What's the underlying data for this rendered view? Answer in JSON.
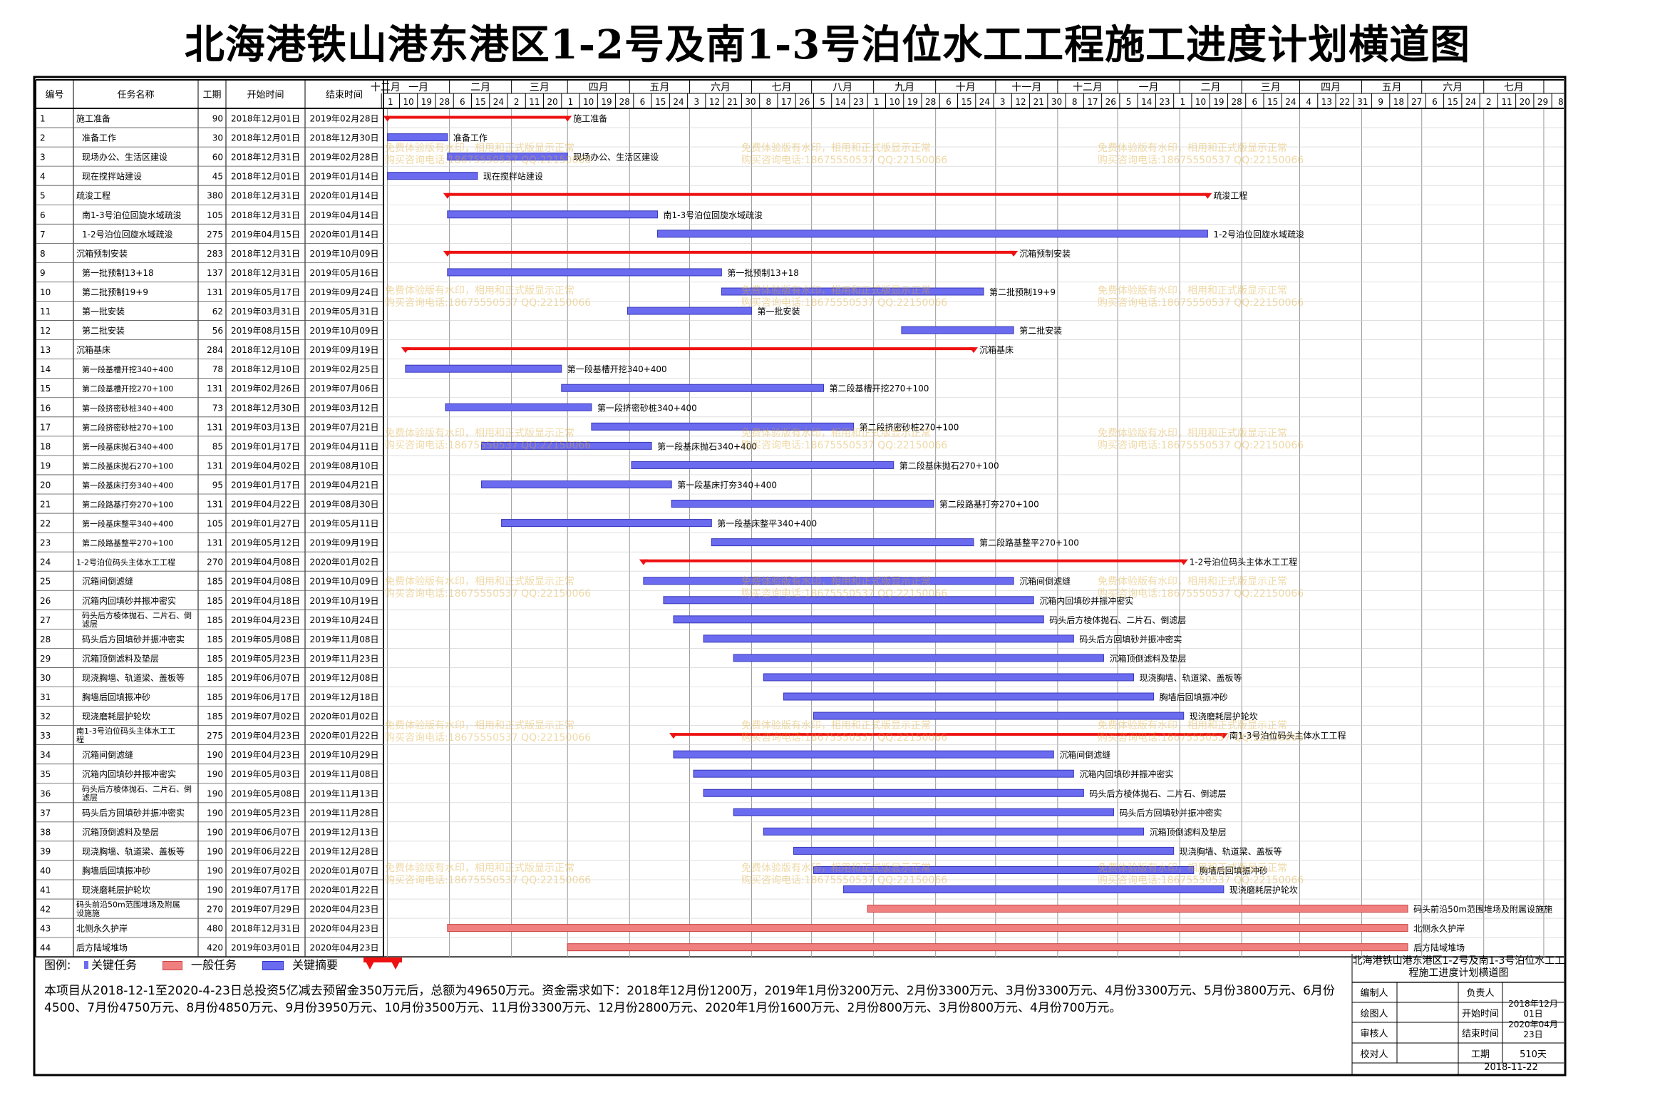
{
  "title": "北海港铁山港东港区1-2号及南1-3号泊位水工工程施工进度计划横道图",
  "headers": {
    "id": "编号",
    "name": "任务名称",
    "duration": "工期",
    "start": "开始时间",
    "end": "结束时间"
  },
  "timeline": {
    "months": [
      "十二月",
      "一月",
      "二月",
      "三月",
      "四月",
      "五月",
      "六月",
      "七月",
      "八月",
      "九月",
      "十月",
      "十一月",
      "十二月",
      "一月",
      "二月",
      "三月",
      "四月",
      "五月",
      "六月",
      "七月"
    ],
    "days": [
      "1",
      "10",
      "19",
      "28",
      "6",
      "15",
      "24",
      "2",
      "11",
      "20",
      "1",
      "10",
      "19",
      "28",
      "6",
      "15",
      "24",
      "3",
      "12",
      "21",
      "30",
      "8",
      "17",
      "26",
      "5",
      "14",
      "23",
      "1",
      "10",
      "19",
      "28",
      "6",
      "15",
      "24",
      "3",
      "12",
      "21",
      "30",
      "8",
      "17",
      "26",
      "5",
      "14",
      "23",
      "1",
      "10",
      "19",
      "28",
      "6",
      "15",
      "24",
      "4",
      "13",
      "22",
      "31",
      "9",
      "18",
      "27",
      "6",
      "15",
      "24",
      "2",
      "11",
      "20",
      "29",
      "8"
    ]
  },
  "chart_data": {
    "type": "gantt",
    "title": "北海港铁山港东港区1-2号及南1-3号泊位水工工程施工进度计划横道图",
    "x_range": [
      "2018-11-29",
      "2020-07-11"
    ],
    "tasks": [
      {
        "id": "1",
        "name": "施工准备",
        "duration": 90,
        "start": "2018年12月01日",
        "end": "2019年02月28日",
        "kind": "summary",
        "label": "施工准备"
      },
      {
        "id": "2",
        "name": "准备工作",
        "duration": 30,
        "start": "2018年12月01日",
        "end": "2018年12月30日",
        "kind": "key",
        "label": "准备工作"
      },
      {
        "id": "3",
        "name": "现场办公、生活区建设",
        "duration": 60,
        "start": "2018年12月31日",
        "end": "2019年02月28日",
        "kind": "key",
        "label": "现场办公、生活区建设"
      },
      {
        "id": "4",
        "name": "现在搅拌站建设",
        "duration": 45,
        "start": "2018年12月01日",
        "end": "2019年01月14日",
        "kind": "key",
        "label": "现在搅拌站建设"
      },
      {
        "id": "5",
        "name": "疏浚工程",
        "duration": 380,
        "start": "2018年12月31日",
        "end": "2020年01月14日",
        "kind": "summary",
        "label": "疏浚工程"
      },
      {
        "id": "6",
        "name": "南1-3号泊位回旋水域疏浚",
        "duration": 105,
        "start": "2018年12月31日",
        "end": "2019年04月14日",
        "kind": "key",
        "label": "南1-3号泊位回旋水域疏浚"
      },
      {
        "id": "7",
        "name": "1-2号泊位回旋水域疏浚",
        "duration": 275,
        "start": "2019年04月15日",
        "end": "2020年01月14日",
        "kind": "key",
        "label": "1-2号泊位回旋水域疏浚"
      },
      {
        "id": "8",
        "name": "沉箱预制安装",
        "duration": 283,
        "start": "2018年12月31日",
        "end": "2019年10月09日",
        "kind": "summary",
        "label": "沉箱预制安装"
      },
      {
        "id": "9",
        "name": "第一批预制13+18",
        "duration": 137,
        "start": "2018年12月31日",
        "end": "2019年05月16日",
        "kind": "key",
        "label": "第一批预制13+18"
      },
      {
        "id": "10",
        "name": "第二批预制19+9",
        "duration": 131,
        "start": "2019年05月17日",
        "end": "2019年09月24日",
        "kind": "key",
        "label": "第二批预制19+9"
      },
      {
        "id": "11",
        "name": "第一批安装",
        "duration": 62,
        "start": "2019年03月31日",
        "end": "2019年05月31日",
        "kind": "key",
        "label": "第一批安装"
      },
      {
        "id": "12",
        "name": "第二批安装",
        "duration": 56,
        "start": "2019年08月15日",
        "end": "2019年10月09日",
        "kind": "key",
        "label": "第二批安装"
      },
      {
        "id": "13",
        "name": "沉箱基床",
        "duration": 284,
        "start": "2018年12月10日",
        "end": "2019年09月19日",
        "kind": "summary",
        "label": "沉箱基床"
      },
      {
        "id": "14",
        "name": "第一段基槽开挖340+400",
        "duration": 78,
        "start": "2018年12月10日",
        "end": "2019年02月25日",
        "kind": "key",
        "label": "第一段基槽开挖340+400"
      },
      {
        "id": "15",
        "name": "第二段基槽开挖270+100",
        "duration": 131,
        "start": "2019年02月26日",
        "end": "2019年07月06日",
        "kind": "key",
        "label": "第二段基槽开挖270+100"
      },
      {
        "id": "16",
        "name": "第一段挤密砂桩340+400",
        "duration": 73,
        "start": "2018年12月30日",
        "end": "2019年03月12日",
        "kind": "key",
        "label": "第一段挤密砂桩340+400"
      },
      {
        "id": "17",
        "name": "第二段挤密砂桩270+100",
        "duration": 131,
        "start": "2019年03月13日",
        "end": "2019年07月21日",
        "kind": "key",
        "label": "第二段挤密砂桩270+100"
      },
      {
        "id": "18",
        "name": "第一段基床抛石340+400",
        "duration": 85,
        "start": "2019年01月17日",
        "end": "2019年04月11日",
        "kind": "key",
        "label": "第一段基床抛石340+400"
      },
      {
        "id": "19",
        "name": "第二段基床抛石270+100",
        "duration": 131,
        "start": "2019年04月02日",
        "end": "2019年08月10日",
        "kind": "key",
        "label": "第二段基床抛石270+100"
      },
      {
        "id": "20",
        "name": "第一段基床打夯340+400",
        "duration": 95,
        "start": "2019年01月17日",
        "end": "2019年04月21日",
        "kind": "key",
        "label": "第一段基床打夯340+400"
      },
      {
        "id": "21",
        "name": "第二段路基打夯270+100",
        "duration": 131,
        "start": "2019年04月22日",
        "end": "2019年08月30日",
        "kind": "key",
        "label": "第二段路基打夯270+100"
      },
      {
        "id": "22",
        "name": "第一段基床整平340+400",
        "duration": 105,
        "start": "2019年01月27日",
        "end": "2019年05月11日",
        "kind": "key",
        "label": "第一段基床整平340+400"
      },
      {
        "id": "23",
        "name": "第二段路基整平270+100",
        "duration": 131,
        "start": "2019年05月12日",
        "end": "2019年09月19日",
        "kind": "key",
        "label": "第二段路基整平270+100"
      },
      {
        "id": "24",
        "name": "1-2号泊位码头主体水工工程",
        "duration": 270,
        "start": "2019年04月08日",
        "end": "2020年01月02日",
        "kind": "summary",
        "label": "1-2号泊位码头主体水工工程"
      },
      {
        "id": "25",
        "name": "沉箱间倒滤缝",
        "duration": 185,
        "start": "2019年04月08日",
        "end": "2019年10月09日",
        "kind": "key",
        "label": "沉箱间倒滤缝"
      },
      {
        "id": "26",
        "name": "沉箱内回填砂并振冲密实",
        "duration": 185,
        "start": "2019年04月18日",
        "end": "2019年10月19日",
        "kind": "key",
        "label": "沉箱内回填砂并振冲密实"
      },
      {
        "id": "27",
        "name": "码头后方棱体抛石、二片石、倒滤层",
        "duration": 185,
        "start": "2019年04月23日",
        "end": "2019年10月24日",
        "kind": "key",
        "label": "码头后方棱体抛石、二片石、倒滤层"
      },
      {
        "id": "28",
        "name": "码头后方回填砂并振冲密实",
        "duration": 185,
        "start": "2019年05月08日",
        "end": "2019年11月08日",
        "kind": "key",
        "label": "码头后方回填砂并振冲密实"
      },
      {
        "id": "29",
        "name": "沉箱顶倒滤料及垫层",
        "duration": 185,
        "start": "2019年05月23日",
        "end": "2019年11月23日",
        "kind": "key",
        "label": "沉箱顶倒滤料及垫层"
      },
      {
        "id": "30",
        "name": "现浇胸墙、轨道梁、盖板等",
        "duration": 185,
        "start": "2019年06月07日",
        "end": "2019年12月08日",
        "kind": "key",
        "label": "现浇胸墙、轨道梁、盖板等"
      },
      {
        "id": "31",
        "name": "胸墙后回填振冲砂",
        "duration": 185,
        "start": "2019年06月17日",
        "end": "2019年12月18日",
        "kind": "key",
        "label": "胸墙后回填振冲砂"
      },
      {
        "id": "32",
        "name": "现浇磨耗层护轮坎",
        "duration": 185,
        "start": "2019年07月02日",
        "end": "2020年01月02日",
        "kind": "key",
        "label": "现浇磨耗层护轮坎"
      },
      {
        "id": "33",
        "name": "南1-3号泊位码头主体水工工程",
        "duration": 275,
        "start": "2019年04月23日",
        "end": "2020年01月22日",
        "kind": "summary",
        "label": "南1-3号泊位码头主体水工工程"
      },
      {
        "id": "34",
        "name": "沉箱间倒滤缝",
        "duration": 190,
        "start": "2019年04月23日",
        "end": "2019年10月29日",
        "kind": "key",
        "label": "沉箱间倒滤缝"
      },
      {
        "id": "35",
        "name": "沉箱内回填砂并振冲密实",
        "duration": 190,
        "start": "2019年05月03日",
        "end": "2019年11月08日",
        "kind": "key",
        "label": "沉箱内回填砂并振冲密实"
      },
      {
        "id": "36",
        "name": "码头后方棱体抛石、二片石、倒滤层",
        "duration": 190,
        "start": "2019年05月08日",
        "end": "2019年11月13日",
        "kind": "key",
        "label": "码头后方棱体抛石、二片石、倒滤层"
      },
      {
        "id": "37",
        "name": "码头后方回填砂并振冲密实",
        "duration": 190,
        "start": "2019年05月23日",
        "end": "2019年11月28日",
        "kind": "key",
        "label": "码头后方回填砂并振冲密实"
      },
      {
        "id": "38",
        "name": "沉箱顶倒滤料及垫层",
        "duration": 190,
        "start": "2019年06月07日",
        "end": "2019年12月13日",
        "kind": "key",
        "label": "沉箱顶倒滤料及垫层"
      },
      {
        "id": "39",
        "name": "现浇胸墙、轨道梁、盖板等",
        "duration": 190,
        "start": "2019年06月22日",
        "end": "2019年12月28日",
        "kind": "key",
        "label": "现浇胸墙、轨道梁、盖板等"
      },
      {
        "id": "40",
        "name": "胸墙后回填振冲砂",
        "duration": 190,
        "start": "2019年07月02日",
        "end": "2020年01月07日",
        "kind": "key",
        "label": "胸墙后回填振冲砂"
      },
      {
        "id": "41",
        "name": "现浇磨耗层护轮坎",
        "duration": 190,
        "start": "2019年07月17日",
        "end": "2020年01月22日",
        "kind": "key",
        "label": "现浇磨耗层护轮坎"
      },
      {
        "id": "42",
        "name": "码头前沿50m范围堆场及附属设施施",
        "duration": 270,
        "start": "2019年07月29日",
        "end": "2020年04月23日",
        "kind": "normal",
        "label": "码头前沿50m范围堆场及附属设施施"
      },
      {
        "id": "43",
        "name": "北侧永久护岸",
        "duration": 480,
        "start": "2018年12月31日",
        "end": "2020年04月23日",
        "kind": "normal",
        "label": "北侧永久护岸"
      },
      {
        "id": "44",
        "name": "后方陆域堆场",
        "duration": 420,
        "start": "2019年03月01日",
        "end": "2020年04月23日",
        "kind": "normal",
        "label": "后方陆域堆场"
      }
    ]
  },
  "legend": {
    "title": "图例:",
    "items": [
      "关键任务",
      "一般任务",
      "关键摘要"
    ]
  },
  "summary": "本项目从2018-12-1至2020-4-23日总投资5亿减去预留金350万元后，总额为49650万元。资金需求如下：2018年12月份1200万，2019年1月份3200万元、2月份3300万元、3月份3300万元、4月份3300万元、5月份3800万元、6月份4500、7月份4750万元、8月份4850万元、9月份3950万元、10月份3500万元、11月份3300万元、12月份2800万元、2020年1月份1600万元、2月份800万元、3月份800万元、4月份700万元。",
  "info": {
    "title": "北海港铁山港东港区1-2号及南1-3号泊位水工工程施工进度计划横道图",
    "rows": [
      {
        "label": "编制人",
        "value": "",
        "label2": "负责人",
        "value2": ""
      },
      {
        "label": "绘图人",
        "value": "",
        "label2": "开始时间",
        "value2": "2018年12月01日"
      },
      {
        "label": "审核人",
        "value": "",
        "label2": "结束时间",
        "value2": "2020年04月23日"
      },
      {
        "label": "校对人",
        "value": "",
        "label2": "工期",
        "value2": "510天"
      }
    ],
    "date": "2018-11-22"
  },
  "watermark": {
    "line1": "免费体验版有水印，相用和正式版显示正常",
    "line2": "购买咨询电话:18675550537 QQ:22150066"
  },
  "colors": {
    "key": "#6b6bf0",
    "normal": "#f08080",
    "summary": "#ee1111",
    "grid": "#999999"
  }
}
